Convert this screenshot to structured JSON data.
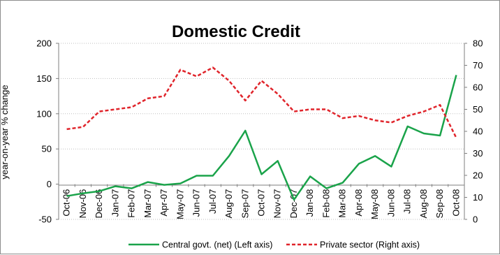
{
  "chart_data": {
    "type": "line",
    "title": "Domestic Credit",
    "ylabel": "year-on-year % change",
    "categories": [
      "Oct-06",
      "Nov-06",
      "Dec-06",
      "Jan-07",
      "Feb-07",
      "Mar-07",
      "Apr-07",
      "May-07",
      "Jun-07",
      "Jul-07",
      "Aug-07",
      "Sep-07",
      "Oct-07",
      "Nov-07",
      "Dec-07",
      "Jan-08",
      "Feb-08",
      "Mar-08",
      "Apr-08",
      "May-08",
      "Jun-08",
      "Jul-08",
      "Aug-08",
      "Sep-08",
      "Oct-08"
    ],
    "y_left": {
      "min": -50,
      "max": 200,
      "ticks": [
        -50,
        0,
        50,
        100,
        150,
        200
      ]
    },
    "y_right": {
      "min": 0,
      "max": 80,
      "ticks": [
        0,
        10,
        20,
        30,
        40,
        50,
        60,
        70,
        80
      ]
    },
    "grid": "horizontal",
    "legend_position": "bottom",
    "series": [
      {
        "name": "Central govt. (net) (Left axis)",
        "axis": "left",
        "color": "#1aa34a",
        "style": "solid",
        "values": [
          -17,
          -13,
          -10,
          -3,
          -6,
          3,
          -1,
          1,
          12,
          12,
          40,
          76,
          14,
          33,
          -22,
          11,
          -6,
          2,
          29,
          40,
          25,
          82,
          72,
          69,
          155
        ]
      },
      {
        "name": "Private sector (Right axis)",
        "axis": "right",
        "color": "#e0242b",
        "style": "dashed",
        "values": [
          41,
          42,
          49,
          50,
          51,
          55,
          56,
          68,
          65,
          69,
          63,
          54,
          63,
          57,
          49,
          50,
          50,
          46,
          47,
          45,
          44,
          47,
          49,
          52,
          37
        ]
      }
    ]
  }
}
